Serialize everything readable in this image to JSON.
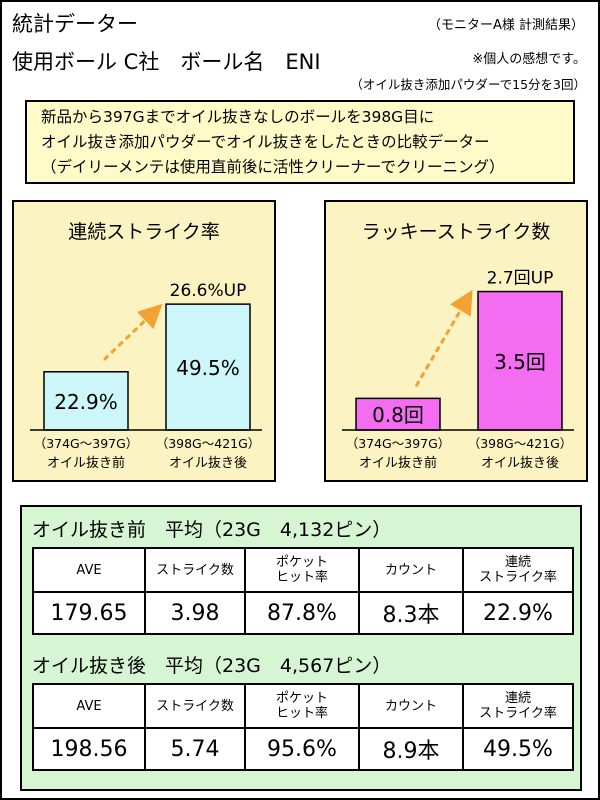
{
  "header": {
    "title": "統計データー",
    "credit": "（モニターA様 計測結果）",
    "subtitle": "使用ボール C社　ボール名　ENI",
    "note1": "※個人の感想です。",
    "note2": "（オイル抜き添加パウダーで15分を3回）"
  },
  "info": {
    "lines": [
      "新品から397Gまでオイル抜きなしのボールを398G目に",
      "オイル抜き添加パウダーでオイル抜きをしたときの比較データー",
      "（デイリーメンテは使用直前後に活性クリーナーでクリーニング）"
    ]
  },
  "chart_data": [
    {
      "type": "bar",
      "title": "連続ストライク率",
      "categories": [
        "（374G～397G）",
        "（398G～421G）"
      ],
      "category_sublabels": [
        "オイル抜き前",
        "オイル抜き後"
      ],
      "values": [
        22.9,
        49.5
      ],
      "value_labels": [
        "22.9%",
        "49.5%"
      ],
      "annotation": "26.6%UP",
      "color": "#ccf6fa",
      "ylim": [
        0,
        70
      ]
    },
    {
      "type": "bar",
      "title": "ラッキーストライク数",
      "categories": [
        "（374G～397G）",
        "（398G～421G）"
      ],
      "category_sublabels": [
        "オイル抜き前",
        "オイル抜き後"
      ],
      "values": [
        0.8,
        3.5
      ],
      "value_labels": [
        "0.8回",
        "3.5回"
      ],
      "annotation": "2.7回UP",
      "color": "#f46cf2",
      "ylim": [
        0,
        4.5
      ]
    }
  ],
  "summary": {
    "before": {
      "title": "オイル抜き前　平均（23G　4,132ピン）",
      "headers": [
        "AVE",
        "ストライク数",
        "ポケット\nヒット率",
        "カウント",
        "連続\nストライク率"
      ],
      "values": [
        "179.65",
        "3.98",
        "87.8%",
        "8.3本",
        "22.9%"
      ]
    },
    "after": {
      "title": "オイル抜き後　平均（23G　4,567ピン）",
      "headers": [
        "AVE",
        "ストライク数",
        "ポケット\nヒット率",
        "カウント",
        "連続\nストライク率"
      ],
      "values": [
        "198.56",
        "5.74",
        "95.6%",
        "8.9本",
        "49.5%"
      ]
    }
  }
}
